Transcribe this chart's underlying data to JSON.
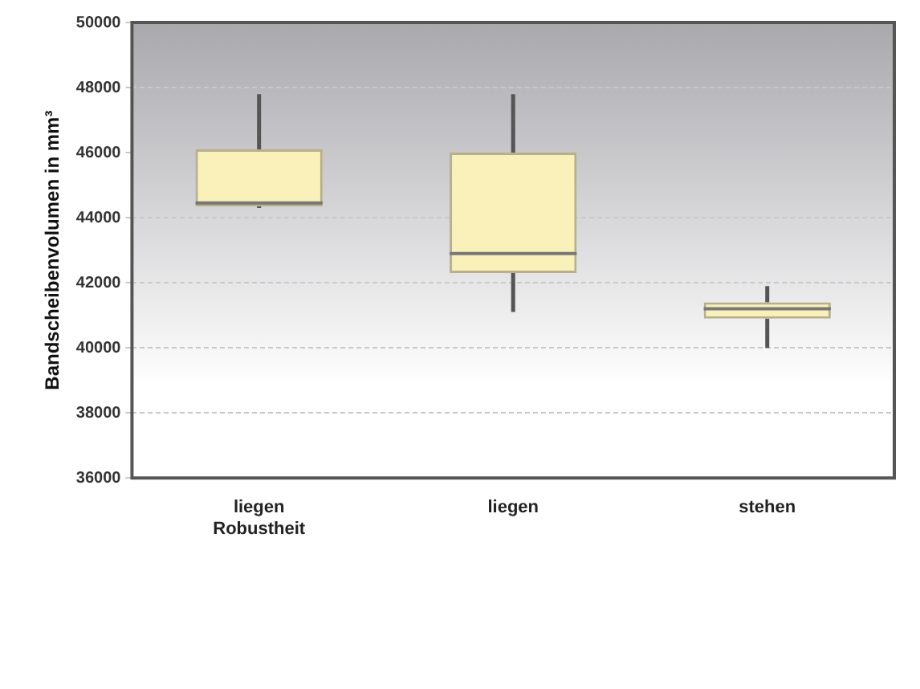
{
  "chart_data": {
    "type": "box",
    "ylabel": "Bandscheibenvolumen in mm³",
    "categories": [
      "liegen\nRobustheit",
      "liegen",
      "stehen"
    ],
    "boxes": [
      {
        "low": 44300,
        "q1": 44350,
        "median": 44450,
        "q3": 46100,
        "high": 47800
      },
      {
        "low": 41100,
        "q1": 42300,
        "median": 42900,
        "q3": 46000,
        "high": 47800
      },
      {
        "low": 40000,
        "q1": 40900,
        "median": 41200,
        "q3": 41400,
        "high": 41900
      }
    ],
    "color": "#f9f1b9",
    "ylim": [
      36000,
      50000
    ],
    "yticks": [
      36000,
      38000,
      40000,
      42000,
      44000,
      46000,
      48000,
      50000
    ],
    "grid": "y",
    "legend": false
  }
}
